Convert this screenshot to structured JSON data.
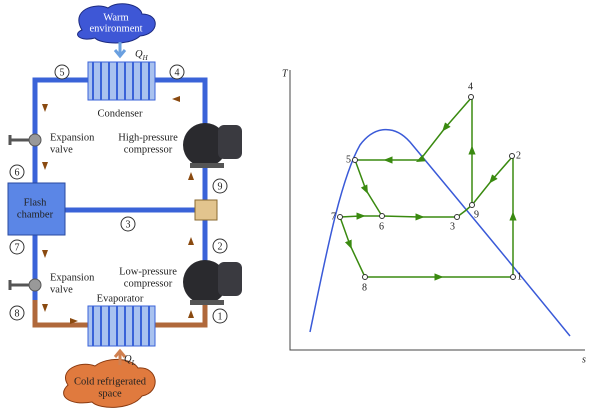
{
  "schematic": {
    "warm_environment": [
      "Warm",
      "environment"
    ],
    "heat_rejected": {
      "symbol": "Q",
      "subscript": "H"
    },
    "condenser": "Condenser",
    "hp_compressor": [
      "High-pressure",
      "compressor"
    ],
    "expansion_valve_upper": [
      "Expansion",
      "valve"
    ],
    "flash_chamber": [
      "Flash",
      "chamber"
    ],
    "lp_compressor": [
      "Low-pressure",
      "compressor"
    ],
    "expansion_valve_lower": [
      "Expansion",
      "valve"
    ],
    "evaporator": "Evaporator",
    "heat_absorbed": {
      "symbol": "Q",
      "subscript": "L"
    },
    "cold_space": [
      "Cold refrigerated",
      "space"
    ],
    "states": [
      "5",
      "4",
      "6",
      "9",
      "3",
      "7",
      "2",
      "8",
      "1"
    ]
  },
  "ts_diagram": {
    "y_axis_label": "T",
    "x_axis_label": "s",
    "points": [
      "4",
      "2",
      "5",
      "9",
      "6",
      "3",
      "7",
      "1",
      "8"
    ]
  }
}
